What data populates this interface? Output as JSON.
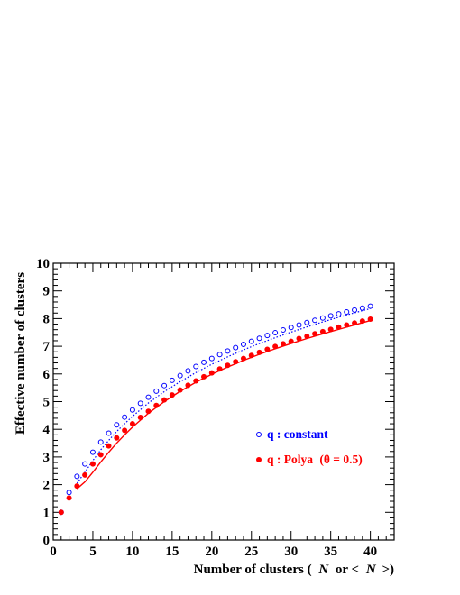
{
  "chart_data": {
    "type": "scatter",
    "title": "",
    "xlabel": "",
    "ylabel": "Effective number of clusters",
    "xlabel_parts": [
      "Number of clusters (",
      "N",
      "or <",
      "N",
      ">)"
    ],
    "xlim": [
      0,
      43
    ],
    "ylim": [
      0,
      10
    ],
    "xticks": [
      0,
      5,
      10,
      15,
      20,
      25,
      30,
      35,
      40
    ],
    "yticks": [
      0,
      1,
      2,
      3,
      4,
      5,
      6,
      7,
      8,
      9,
      10
    ],
    "grid": false,
    "legend_position": "right-middle",
    "series": [
      {
        "name": "q : constant",
        "marker": "open-circle",
        "color": "#0000ff",
        "x": [
          1,
          2,
          3,
          4,
          5,
          6,
          7,
          8,
          9,
          10,
          11,
          12,
          13,
          14,
          15,
          16,
          17,
          18,
          19,
          20,
          21,
          22,
          23,
          24,
          25,
          26,
          27,
          28,
          29,
          30,
          31,
          32,
          33,
          34,
          35,
          36,
          37,
          38,
          39,
          40
        ],
        "y": [
          1.0,
          1.72,
          2.3,
          2.75,
          3.17,
          3.54,
          3.86,
          4.16,
          4.44,
          4.7,
          4.94,
          5.16,
          5.38,
          5.58,
          5.77,
          5.94,
          6.11,
          6.27,
          6.42,
          6.56,
          6.7,
          6.83,
          6.95,
          7.07,
          7.18,
          7.29,
          7.39,
          7.49,
          7.59,
          7.68,
          7.77,
          7.86,
          7.94,
          8.02,
          8.1,
          8.17,
          8.24,
          8.31,
          8.38,
          8.45
        ]
      },
      {
        "name": "q : Polya",
        "name_suffix": "(θ = 0.5)",
        "marker": "filled-circle",
        "color": "#ff0000",
        "x": [
          1,
          2,
          3,
          4,
          5,
          6,
          7,
          8,
          9,
          10,
          11,
          12,
          13,
          14,
          15,
          16,
          17,
          18,
          19,
          20,
          21,
          22,
          23,
          24,
          25,
          26,
          27,
          28,
          29,
          30,
          31,
          32,
          33,
          34,
          35,
          36,
          37,
          38,
          39,
          40
        ],
        "y": [
          1.0,
          1.52,
          1.95,
          2.35,
          2.75,
          3.08,
          3.4,
          3.69,
          3.96,
          4.2,
          4.43,
          4.65,
          4.86,
          5.06,
          5.24,
          5.42,
          5.59,
          5.75,
          5.9,
          6.04,
          6.18,
          6.31,
          6.44,
          6.56,
          6.67,
          6.78,
          6.89,
          6.99,
          7.09,
          7.18,
          7.28,
          7.36,
          7.45,
          7.53,
          7.61,
          7.69,
          7.77,
          7.84,
          7.91,
          7.98
        ]
      },
      {
        "name": "",
        "style": "dotted-line",
        "color": "#0000ff",
        "x": [
          3,
          4,
          5,
          6,
          7,
          8,
          9,
          10,
          12,
          14,
          16,
          18,
          20,
          22,
          24,
          26,
          28,
          30,
          32,
          34,
          36,
          38,
          40
        ],
        "y": [
          2.05,
          2.45,
          2.87,
          3.26,
          3.6,
          3.92,
          4.2,
          4.47,
          4.95,
          5.36,
          5.72,
          6.05,
          6.35,
          6.62,
          6.87,
          7.1,
          7.31,
          7.51,
          7.7,
          7.88,
          8.05,
          8.21,
          8.36
        ]
      },
      {
        "name": "",
        "style": "solid-line",
        "color": "#ff0000",
        "x": [
          3,
          4,
          5,
          6,
          7,
          8,
          9,
          10,
          12,
          14,
          16,
          18,
          20,
          22,
          24,
          26,
          28,
          30,
          32,
          34,
          36,
          38,
          40
        ],
        "y": [
          1.85,
          2.1,
          2.45,
          2.82,
          3.17,
          3.5,
          3.8,
          4.08,
          4.58,
          5.0,
          5.37,
          5.7,
          5.99,
          6.25,
          6.49,
          6.71,
          6.91,
          7.1,
          7.28,
          7.45,
          7.61,
          7.77,
          7.93
        ]
      }
    ]
  }
}
